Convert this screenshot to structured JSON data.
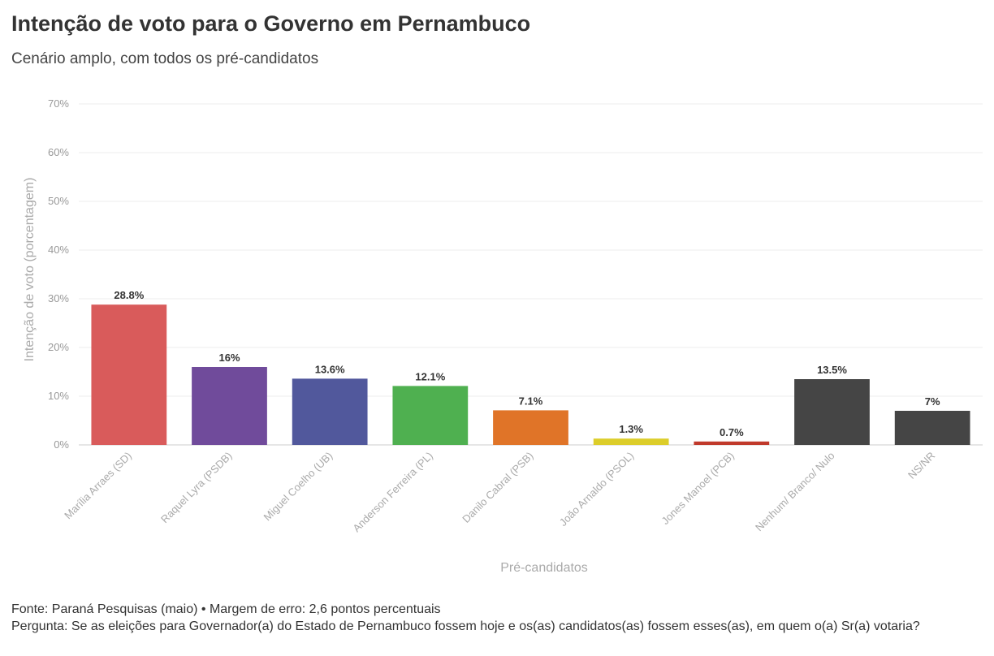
{
  "header": {
    "title": "Intenção de voto para o Governo em Pernambuco",
    "subtitle": "Cenário amplo, com todos os pré-candidatos"
  },
  "footer": {
    "source": "Fonte: Paraná Pesquisas (maio) • Margem de erro: 2,6 pontos percentuais",
    "question": "Pergunta: Se as eleições para Governador(a) do Estado de Pernambuco fossem hoje e os(as) candidatos(as) fossem esses(as), em quem o(a) Sr(a) votaria?"
  },
  "chart_data": {
    "type": "bar",
    "title": "Intenção de voto para o Governo em Pernambuco",
    "subtitle": "Cenário amplo, com todos os pré-candidatos",
    "xlabel": "Pré-candidatos",
    "ylabel": "Intenção de voto (porcentagem)",
    "ylim": [
      0,
      70
    ],
    "yticks": [
      0,
      10,
      20,
      30,
      40,
      50,
      60,
      70
    ],
    "ytick_labels": [
      "0%",
      "10%",
      "20%",
      "30%",
      "40%",
      "50%",
      "60%",
      "70%"
    ],
    "grid": true,
    "categories": [
      "Marília Arraes (SD)",
      "Raquel Lyra (PSDB)",
      "Miguel Coelho (UB)",
      "Anderson Ferreira (PL)",
      "Danilo Cabral (PSB)",
      "João Arnaldo (PSOL)",
      "Jones Manoel (PCB)",
      "Nenhum/ Branco/ Nulo",
      "NS/NR"
    ],
    "values": [
      28.8,
      16,
      13.6,
      12.1,
      7.1,
      1.3,
      0.7,
      13.5,
      7
    ],
    "value_labels": [
      "28.8%",
      "16%",
      "13.6%",
      "12.1%",
      "7.1%",
      "1.3%",
      "0.7%",
      "13.5%",
      "7%"
    ],
    "colors": [
      "#d95b5b",
      "#704b9b",
      "#51589c",
      "#4fb050",
      "#e07428",
      "#dccd2a",
      "#c0392b",
      "#454545",
      "#454545"
    ]
  }
}
